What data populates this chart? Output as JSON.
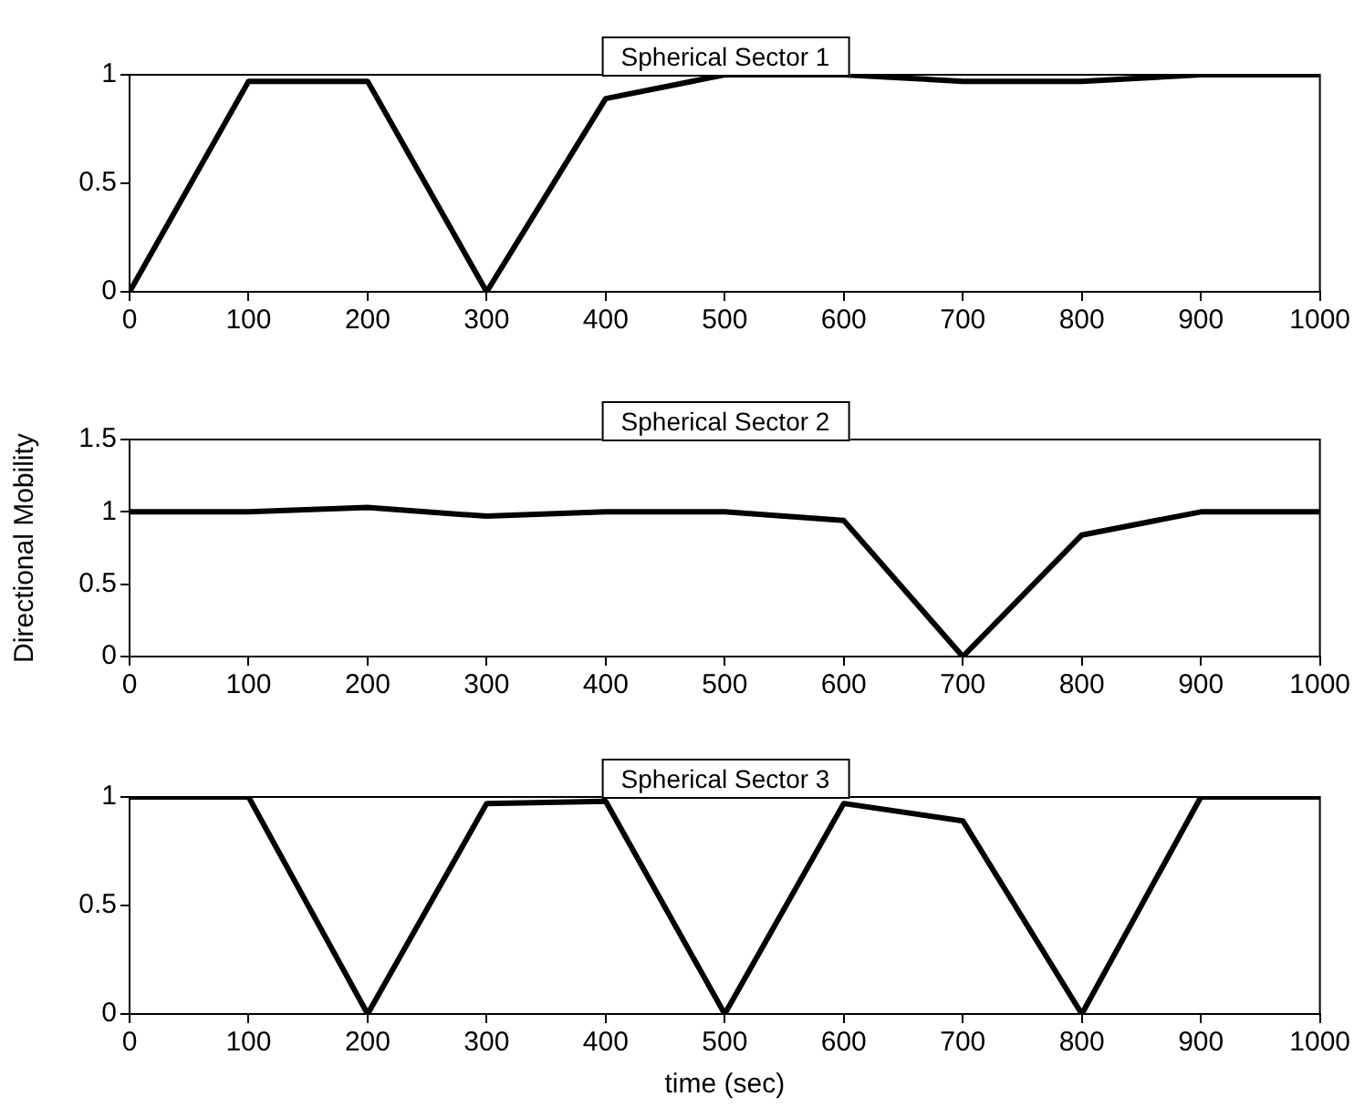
{
  "chart_data": [
    {
      "type": "line",
      "title": "Spherical Sector 1",
      "x": [
        0,
        100,
        200,
        300,
        400,
        500,
        600,
        700,
        800,
        900,
        1000
      ],
      "series": [
        {
          "color": "#000000",
          "values": [
            0,
            0.97,
            0.97,
            0,
            0.89,
            1,
            1,
            0.97,
            0.97,
            1,
            1
          ]
        }
      ],
      "xlim": [
        0,
        1000
      ],
      "xticks": [
        0,
        100,
        200,
        300,
        400,
        500,
        600,
        700,
        800,
        900,
        1000
      ],
      "ylim": [
        0,
        1
      ],
      "yticks": [
        0,
        0.5,
        1
      ],
      "legend": false
    },
    {
      "type": "line",
      "title": "Spherical Sector 2",
      "ylabel": "Directional Mobility",
      "x": [
        0,
        100,
        200,
        300,
        400,
        500,
        600,
        700,
        800,
        900,
        1000
      ],
      "series": [
        {
          "color": "#000000",
          "values": [
            1,
            1,
            1.03,
            0.97,
            1,
            1,
            0.94,
            0,
            0.84,
            1,
            1
          ]
        }
      ],
      "xlim": [
        0,
        1000
      ],
      "xticks": [
        0,
        100,
        200,
        300,
        400,
        500,
        600,
        700,
        800,
        900,
        1000
      ],
      "ylim": [
        0,
        1.5
      ],
      "yticks": [
        0,
        0.5,
        1,
        1.5
      ],
      "legend": false
    },
    {
      "type": "line",
      "title": "Spherical Sector 3",
      "xlabel": "time (sec)",
      "x": [
        0,
        100,
        200,
        300,
        400,
        500,
        600,
        700,
        800,
        900,
        1000
      ],
      "series": [
        {
          "color": "#000000",
          "values": [
            1,
            1,
            0,
            0.97,
            0.98,
            0,
            0.97,
            0.89,
            0,
            1,
            1
          ]
        }
      ],
      "xlim": [
        0,
        1000
      ],
      "xticks": [
        0,
        100,
        200,
        300,
        400,
        500,
        600,
        700,
        800,
        900,
        1000
      ],
      "ylim": [
        0,
        1
      ],
      "yticks": [
        0,
        0.5,
        1
      ],
      "legend": false
    }
  ]
}
